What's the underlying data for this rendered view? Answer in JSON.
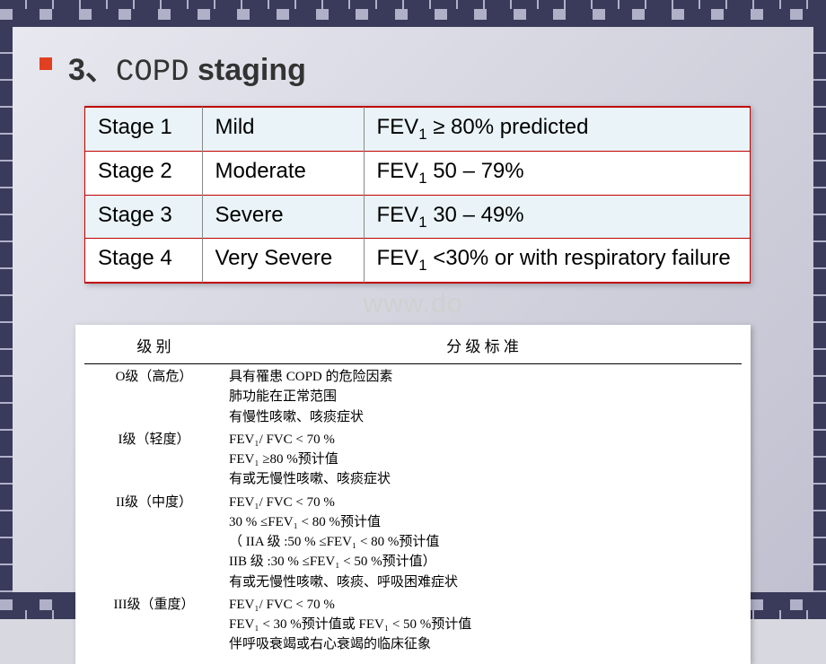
{
  "heading": {
    "prefix": "3、",
    "mono": "COPD",
    "suffix": " staging",
    "bullet_color": "#e04020",
    "fontsize": 34
  },
  "table1": {
    "border_color": "#c00000",
    "alt_row_bg": "#eaf4f8",
    "fontsize": 24,
    "columns": [
      "stage",
      "severity",
      "criterion"
    ],
    "rows": [
      {
        "stage": "Stage 1",
        "severity": "Mild",
        "crit_pre": "FEV",
        "crit_sub": "1",
        "crit_post": " ≥ 80% predicted",
        "bg": "odd"
      },
      {
        "stage": "Stage 2",
        "severity": "Moderate",
        "crit_pre": "FEV",
        "crit_sub": "1",
        "crit_post": " 50 – 79%",
        "bg": "even"
      },
      {
        "stage": "Stage 3",
        "severity": "Severe",
        "crit_pre": "FEV",
        "crit_sub": "1",
        "crit_post": " 30 – 49%",
        "bg": "odd"
      },
      {
        "stage": "Stage 4",
        "severity": "Very Severe",
        "crit_pre": "FEV",
        "crit_sub": "1",
        "crit_post": " <30% or with respiratory failure",
        "bg": "even"
      }
    ]
  },
  "watermark": "www.do",
  "table2": {
    "header": {
      "col1": "级 别",
      "col2": "分 级 标 准"
    },
    "fontsize_header": 17,
    "fontsize_body": 15,
    "levels": [
      {
        "label": "O级（高危）",
        "lines": [
          "具有罹患 COPD 的危险因素",
          "肺功能在正常范围",
          "有慢性咳嗽、咳痰症状"
        ]
      },
      {
        "label": "I级（轻度）",
        "lines": [
          "FEV₁/ FVC < 70 %",
          "FEV₁ ≥80 %预计值",
          "有或无慢性咳嗽、咳痰症状"
        ]
      },
      {
        "label": "II级（中度）",
        "lines": [
          "FEV₁/ FVC < 70 %",
          "30 % ≤FEV₁ < 80 %预计值",
          "（ IIA 级 :50 % ≤FEV₁ < 80 %预计值",
          "  IIB 级 :30 % ≤FEV₁ < 50 %预计值）",
          "有或无慢性咳嗽、咳痰、呼吸困难症状"
        ]
      },
      {
        "label": "III级（重度）",
        "lines": [
          "FEV₁/ FVC < 70 %",
          "FEV₁ < 30 %预计值或 FEV₁ < 50 %预计值",
          "伴呼吸衰竭或右心衰竭的临床征象"
        ]
      }
    ]
  }
}
